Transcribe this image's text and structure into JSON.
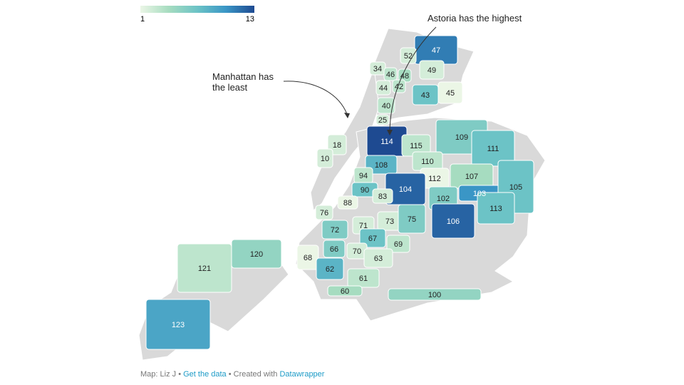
{
  "legend": {
    "min": 1,
    "max": 13,
    "colors": [
      "#ebf6e6",
      "#a6dcc0",
      "#6cc3c6",
      "#3a96c6",
      "#1e4a91"
    ]
  },
  "annotations": {
    "astoria": "Astoria has the highest",
    "manhattan_line1": "Manhattan has",
    "manhattan_line2": "the least"
  },
  "regions": [
    {
      "label": "47",
      "value": 11
    },
    {
      "label": "52",
      "value": 2
    },
    {
      "label": "34",
      "value": 2
    },
    {
      "label": "46",
      "value": 3
    },
    {
      "label": "48",
      "value": 4
    },
    {
      "label": "49",
      "value": 2
    },
    {
      "label": "44",
      "value": 2
    },
    {
      "label": "42",
      "value": 3
    },
    {
      "label": "43",
      "value": 7
    },
    {
      "label": "45",
      "value": 1
    },
    {
      "label": "40",
      "value": 3
    },
    {
      "label": "25",
      "value": 2
    },
    {
      "label": "114",
      "value": 13
    },
    {
      "label": "115",
      "value": 3
    },
    {
      "label": "109",
      "value": 6
    },
    {
      "label": "111",
      "value": 7
    },
    {
      "label": "18",
      "value": 2
    },
    {
      "label": "10",
      "value": 2
    },
    {
      "label": "108",
      "value": 8
    },
    {
      "label": "110",
      "value": 3
    },
    {
      "label": "94",
      "value": 3
    },
    {
      "label": "112",
      "value": 1
    },
    {
      "label": "107",
      "value": 4
    },
    {
      "label": "90",
      "value": 7
    },
    {
      "label": "104",
      "value": 12
    },
    {
      "label": "83",
      "value": 2
    },
    {
      "label": "102",
      "value": 6
    },
    {
      "label": "103",
      "value": 10
    },
    {
      "label": "105",
      "value": 7
    },
    {
      "label": "88",
      "value": 1
    },
    {
      "label": "113",
      "value": 7
    },
    {
      "label": "76",
      "value": 2
    },
    {
      "label": "106",
      "value": 12
    },
    {
      "label": "73",
      "value": 2
    },
    {
      "label": "71",
      "value": 2
    },
    {
      "label": "75",
      "value": 6
    },
    {
      "label": "72",
      "value": 6
    },
    {
      "label": "67",
      "value": 7
    },
    {
      "label": "69",
      "value": 3
    },
    {
      "label": "66",
      "value": 6
    },
    {
      "label": "70",
      "value": 2
    },
    {
      "label": "68",
      "value": 1
    },
    {
      "label": "63",
      "value": 2
    },
    {
      "label": "62",
      "value": 8
    },
    {
      "label": "61",
      "value": 3
    },
    {
      "label": "60",
      "value": 4
    },
    {
      "label": "100",
      "value": 5
    },
    {
      "label": "121",
      "value": 3
    },
    {
      "label": "120",
      "value": 5
    },
    {
      "label": "123",
      "value": 9
    }
  ],
  "footer": {
    "credit": "Map: Liz J",
    "separator": "•",
    "link": "Get the data",
    "created": "Created with",
    "tool": "Datawrapper"
  }
}
